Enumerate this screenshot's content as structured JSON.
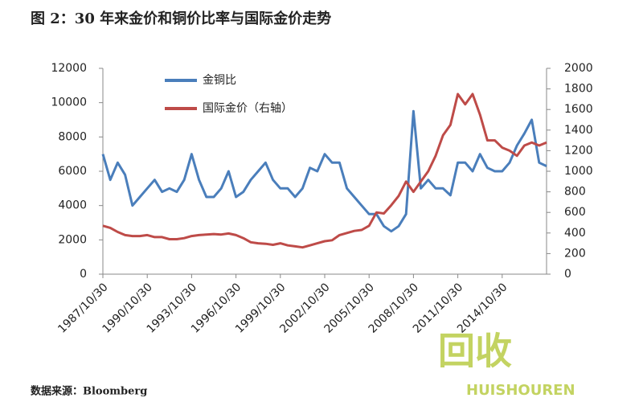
{
  "chart_data": {
    "type": "line",
    "title": "图 2：30 年来金价和铜价比率与国际金价走势",
    "source": "数据来源：Bloomberg",
    "watermark": [
      "回收",
      "HUISHOUREN"
    ],
    "x": [
      "1987/10/30",
      "1988/04/30",
      "1988/10/30",
      "1989/04/30",
      "1989/10/30",
      "1990/04/30",
      "1990/10/30",
      "1991/04/30",
      "1991/10/30",
      "1992/04/30",
      "1992/10/30",
      "1993/04/30",
      "1993/10/30",
      "1994/04/30",
      "1994/10/30",
      "1995/04/30",
      "1995/10/30",
      "1996/04/30",
      "1996/10/30",
      "1997/04/30",
      "1997/10/30",
      "1998/04/30",
      "1998/10/30",
      "1999/04/30",
      "1999/10/30",
      "2000/04/30",
      "2000/10/30",
      "2001/04/30",
      "2001/10/30",
      "2002/04/30",
      "2002/10/30",
      "2003/04/30",
      "2003/10/30",
      "2004/04/30",
      "2004/10/30",
      "2005/04/30",
      "2005/10/30",
      "2006/04/30",
      "2006/10/30",
      "2007/04/30",
      "2007/10/30",
      "2008/04/30",
      "2008/10/30",
      "2009/04/30",
      "2009/10/30",
      "2010/04/30",
      "2010/10/30",
      "2011/04/30",
      "2011/10/30",
      "2012/04/30",
      "2012/10/30",
      "2013/04/30",
      "2013/10/30",
      "2014/04/30",
      "2014/10/30",
      "2015/04/30",
      "2015/10/30",
      "2016/04/30",
      "2016/10/30",
      "2017/04/30",
      "2017/10/30"
    ],
    "xlim": [
      "1987/10/30",
      "2017/10/30"
    ],
    "xticks": [
      "1987/10/30",
      "1990/10/30",
      "1993/10/30",
      "1996/10/30",
      "1999/10/30",
      "2002/10/30",
      "2005/10/30",
      "2008/10/30",
      "2011/10/30",
      "2014/10/30"
    ],
    "ylim": [
      0,
      12000
    ],
    "yticks": [
      0,
      2000,
      4000,
      6000,
      8000,
      10000,
      12000
    ],
    "y2lim": [
      0,
      2000
    ],
    "y2ticks": [
      0,
      200,
      400,
      600,
      800,
      1000,
      1200,
      1400,
      1600,
      1800,
      2000
    ],
    "series": [
      {
        "name": "金铜比",
        "color": "#4a7ebb",
        "values": [
          7000,
          5500,
          6500,
          5800,
          4000,
          4500,
          5000,
          5500,
          4800,
          5000,
          4800,
          5500,
          7000,
          5500,
          4500,
          4500,
          5000,
          6000,
          4500,
          4800,
          5500,
          6000,
          6500,
          5500,
          5000,
          5000,
          4500,
          5000,
          6200,
          6000,
          7000,
          6500,
          6500,
          5000,
          4500,
          4000,
          3500,
          3500,
          2800,
          2500,
          2800,
          3500,
          9500,
          5000,
          5500,
          5000,
          5000,
          4600,
          6500,
          6500,
          6000,
          7000,
          6200,
          6000,
          6000,
          6500,
          7500,
          8200,
          9000,
          6500,
          6300
        ]
      },
      {
        "name": "国际金价（右轴）",
        "color": "#be4b48",
        "axis": "y2",
        "values": [
          470,
          450,
          410,
          380,
          370,
          370,
          380,
          360,
          360,
          340,
          340,
          350,
          370,
          380,
          385,
          390,
          385,
          395,
          380,
          350,
          310,
          300,
          295,
          285,
          300,
          280,
          270,
          260,
          280,
          300,
          320,
          330,
          380,
          400,
          420,
          430,
          470,
          600,
          590,
          670,
          760,
          900,
          800,
          900,
          1000,
          1150,
          1350,
          1450,
          1750,
          1650,
          1750,
          1550,
          1300,
          1300,
          1230,
          1200,
          1150,
          1250,
          1280,
          1250,
          1280
        ]
      }
    ]
  }
}
